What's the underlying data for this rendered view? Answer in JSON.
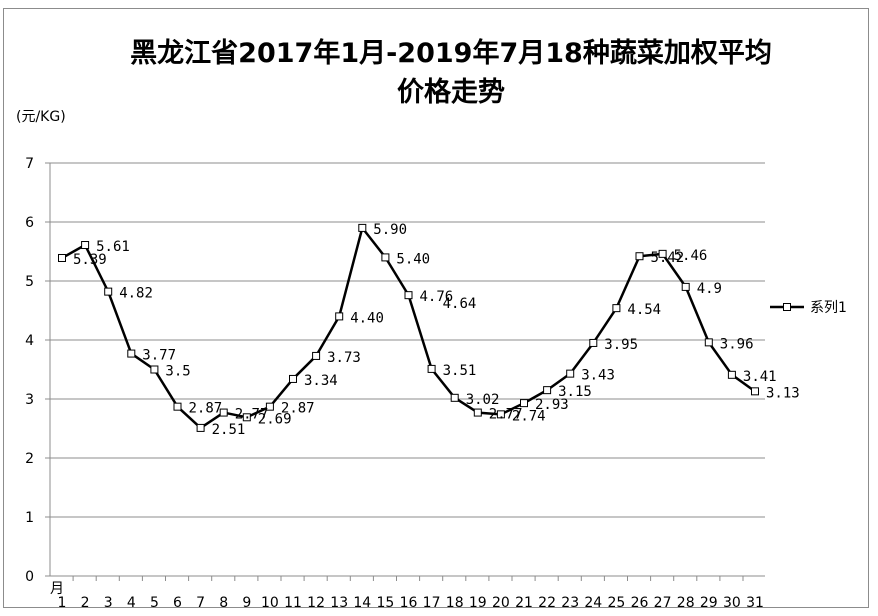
{
  "chart_data": {
    "type": "line",
    "title_line1": "黑龙江省2017年1月-2019年7月18种蔬菜加权平均",
    "title_line2": "价格走势",
    "ylabel": "(元/KG)",
    "xlabel": "月",
    "ylim": [
      0,
      7
    ],
    "yticks": [
      "0",
      "1",
      "2",
      "3",
      "4",
      "5",
      "6",
      "7"
    ],
    "grid": true,
    "legend_position": "right",
    "categories": [
      "1",
      "2",
      "3",
      "4",
      "5",
      "6",
      "7",
      "8",
      "9",
      "10",
      "11",
      "12",
      "13",
      "14",
      "15",
      "16",
      "17",
      "18",
      "19",
      "20",
      "21",
      "22",
      "23",
      "24",
      "25",
      "26",
      "27",
      "28",
      "29",
      "30",
      "31"
    ],
    "series": [
      {
        "name": "系列1",
        "values": [
          5.39,
          5.61,
          4.82,
          3.77,
          3.5,
          2.87,
          2.51,
          2.77,
          2.69,
          2.87,
          3.34,
          3.73,
          4.4,
          5.9,
          5.4,
          4.76,
          3.51,
          3.02,
          2.77,
          2.74,
          2.93,
          3.15,
          3.43,
          3.95,
          4.54,
          5.42,
          5.46,
          4.9,
          3.96,
          3.41,
          3.13
        ],
        "labels": [
          "5.39",
          "5.61",
          "4.82",
          "3.77",
          "3.5",
          "2.87",
          "2.51",
          "2.77",
          "2.69",
          "2.87",
          "3.34",
          "3.73",
          "4.40",
          "5.90",
          "5.40",
          "4.76",
          "3.51",
          "3.02",
          "2.77",
          "2.74",
          "2.93",
          "3.15",
          "3.43",
          "3.95",
          "4.54",
          "5.42",
          "5.46",
          "4.9",
          "3.96",
          "3.41",
          "3.13"
        ]
      }
    ],
    "annotations": [
      "4.64"
    ],
    "colors": {
      "line": "#000000",
      "grid": "#8c8c8c",
      "marker_fill": "#ffffff"
    }
  }
}
